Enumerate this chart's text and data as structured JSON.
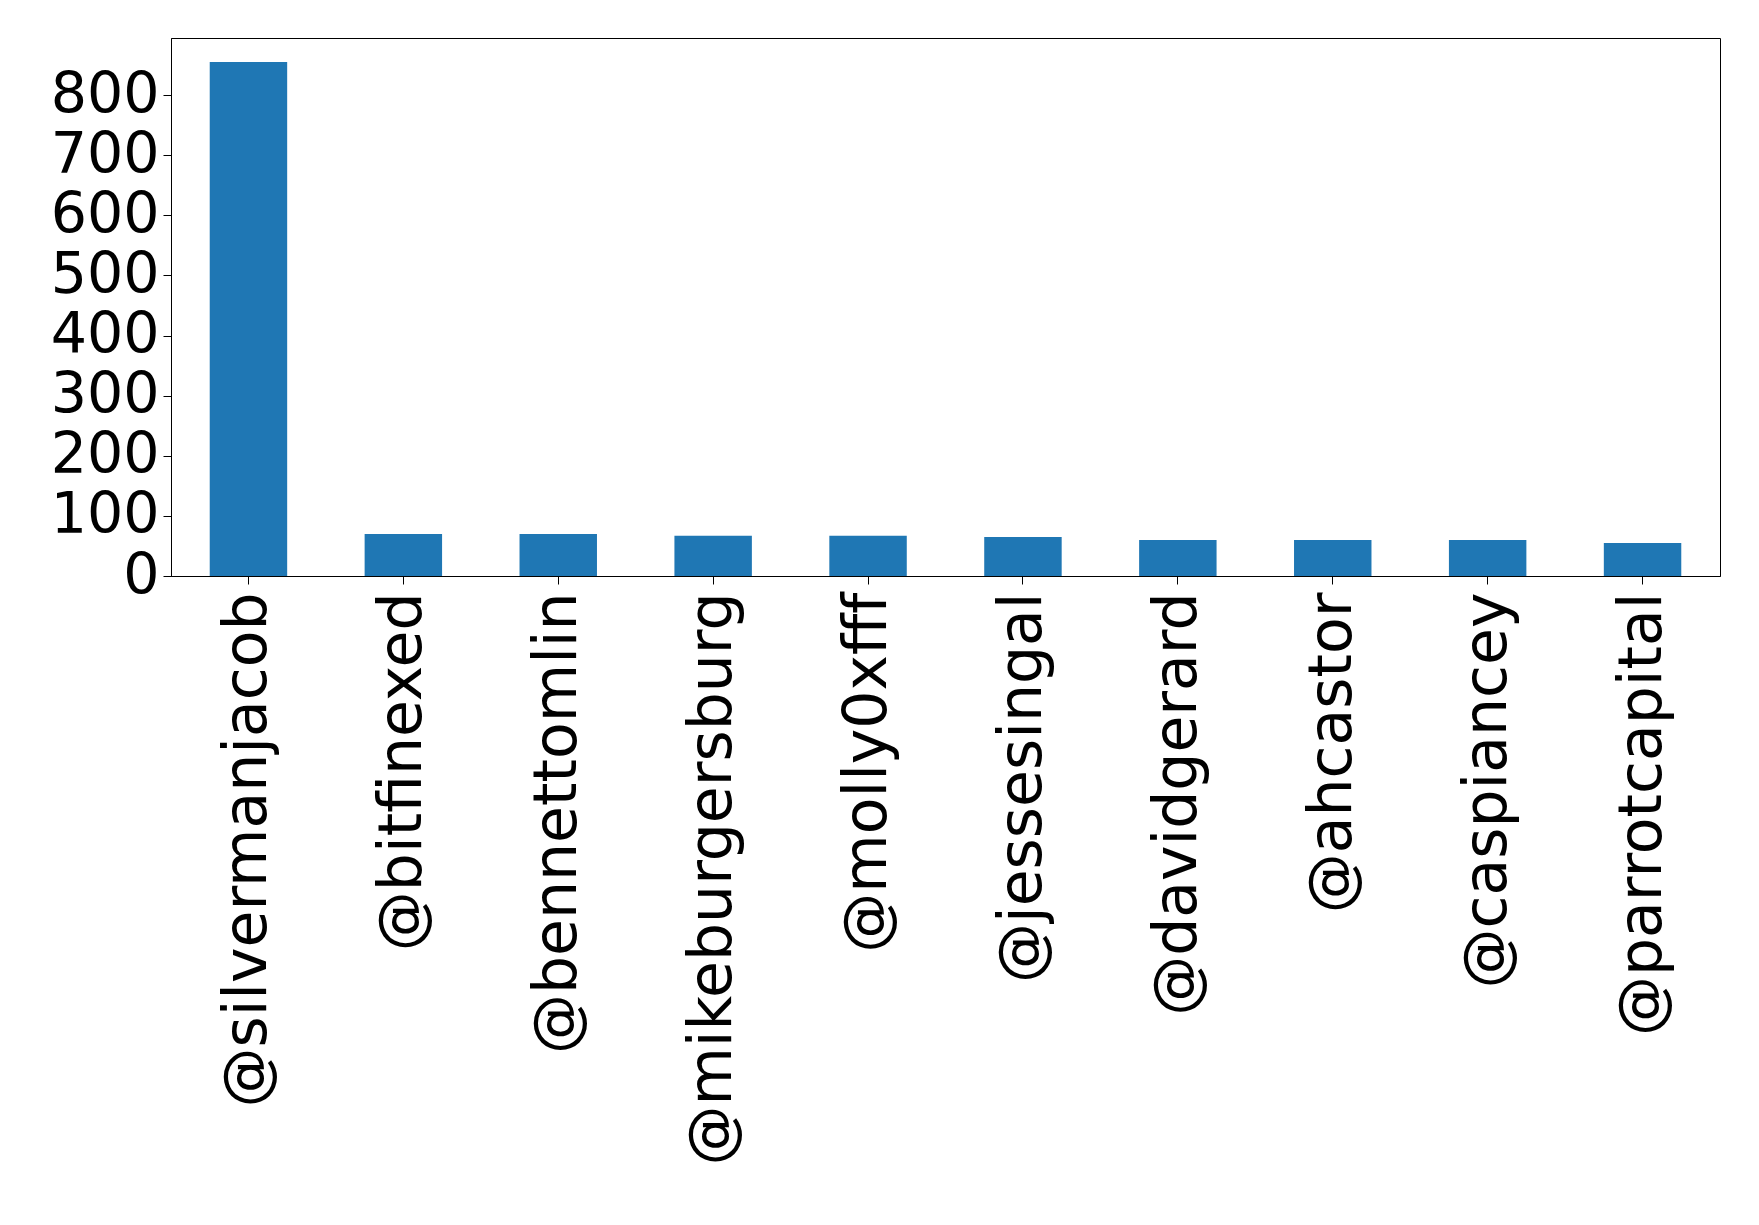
{
  "chart_data": {
    "type": "bar",
    "categories": [
      "@silvermanjacob",
      "@bitfinexed",
      "@bennettomlin",
      "@mikeburgersburg",
      "@molly0xfff",
      "@jessesingal",
      "@davidgerard",
      "@ahcastor",
      "@caspiancey",
      "@parrotcapital"
    ],
    "values": [
      855,
      70,
      70,
      67,
      67,
      65,
      60,
      60,
      60,
      55
    ],
    "color": "#1f77b4",
    "ylim": [
      0,
      895
    ],
    "yticks": [
      0,
      100,
      200,
      300,
      400,
      500,
      600,
      700,
      800
    ],
    "grid": false
  }
}
